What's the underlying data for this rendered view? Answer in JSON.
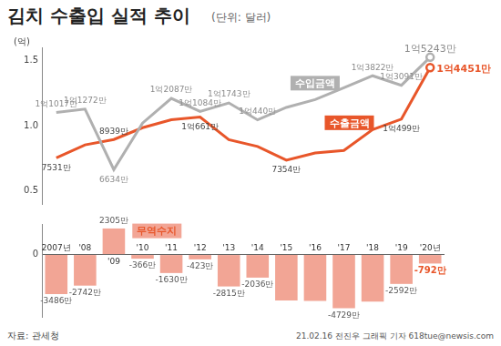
{
  "title": "김치 수출입 실적 추이",
  "subtitle": "(단위: 달러)",
  "source": "자료: 관세청",
  "credit": "21.02.16 전진우 그래픽 기자 618tue@newsis.com",
  "chart_data": [
    {
      "type": "line",
      "y_label": "(억)",
      "categories": [
        "2007년",
        "'08",
        "'09",
        "'10",
        "'11",
        "'12",
        "'13",
        "'14",
        "'15",
        "'16",
        "'17",
        "'18",
        "'19",
        "'20년"
      ],
      "ylim": [
        0.4,
        1.6
      ],
      "yticks": [
        0.5,
        {
          "value": 1,
          "label": "1.0"
        },
        1.5
      ],
      "grid": false,
      "tick_labels": "y",
      "data_labels": true,
      "series": [
        {
          "name": "수입금액",
          "color": "#b0b0b0",
          "values": [
            1.1017,
            1.1272,
            0.6634,
            1.02,
            1.2087,
            1.1084,
            1.1743,
            1.044,
            1.14,
            1.2,
            1.29,
            1.3822,
            1.3091,
            1.5243
          ],
          "value_labels": [
            "1억1017만",
            "1억1272만",
            "6634만",
            null,
            "1억2087만",
            "1억1084만",
            "1억1743만",
            "1억440만",
            null,
            null,
            null,
            "1억3822만",
            "1억3091만",
            "1억5243만"
          ]
        },
        {
          "name": "수출금액",
          "color": "#e8562a",
          "values": [
            0.7531,
            0.853,
            0.8939,
            0.984,
            1.0457,
            1.0661,
            0.8928,
            0.8404,
            0.7354,
            0.79,
            0.81,
            0.97,
            1.0499,
            1.4451
          ],
          "value_labels": [
            "7531만",
            null,
            "8939만",
            null,
            null,
            "1억661만",
            null,
            null,
            "7354만",
            null,
            null,
            null,
            "1억499만",
            "1억4451만"
          ]
        }
      ]
    },
    {
      "type": "bar",
      "categories": [
        "2007년",
        "'08",
        "'09",
        "'10",
        "'11",
        "'12",
        "'13",
        "'14",
        "'15",
        "'16",
        "'17",
        "'18",
        "'19",
        "'20년"
      ],
      "ylim": [
        -5500,
        2700
      ],
      "yticks": [
        0
      ],
      "grid": true,
      "data_labels": true,
      "series": [
        {
          "name": "무역수지",
          "color": "#f2a595",
          "values": [
            -3486,
            -2742,
            2305,
            -366,
            -1630,
            -423,
            -2815,
            -2036,
            -4050,
            -4100,
            -4729,
            -4150,
            -2592,
            -792
          ],
          "value_labels": [
            "-3486만",
            "-2742만",
            "2305만",
            "-366만",
            "-1630만",
            "-423만",
            "-2815만",
            "-2036만",
            null,
            null,
            "-4729만",
            null,
            "-2592만",
            "-792만"
          ]
        }
      ]
    }
  ]
}
